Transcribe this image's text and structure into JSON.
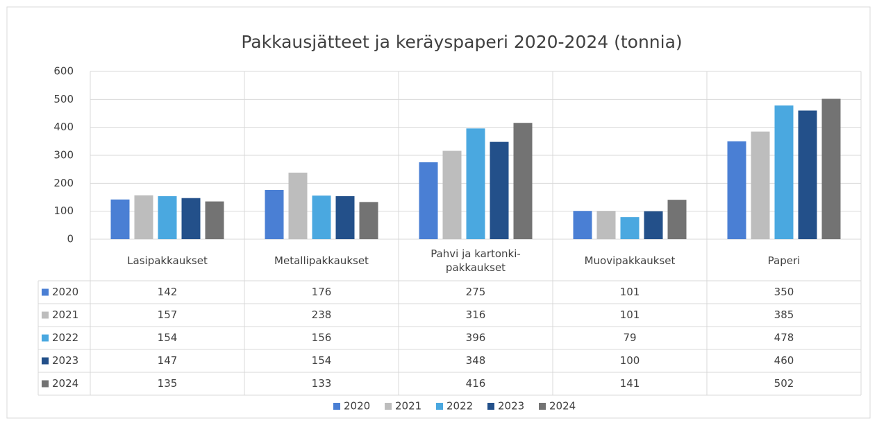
{
  "chart_data": {
    "type": "bar",
    "title": "Pakkausjätteet ja keräyspaperi 2020-2024 (tonnia)",
    "categories": [
      "Lasipakkaukset",
      "Metallipakkaukset",
      "Pahvi ja kartonki-pakkaukset",
      "Muovipakkaukset",
      "Paperi"
    ],
    "series": [
      {
        "name": "2020",
        "color": "#4a7fd4",
        "values": [
          142,
          176,
          275,
          101,
          350
        ]
      },
      {
        "name": "2021",
        "color": "#bdbdbd",
        "values": [
          157,
          238,
          316,
          101,
          385
        ]
      },
      {
        "name": "2022",
        "color": "#4aa8e0",
        "values": [
          154,
          156,
          396,
          79,
          478
        ]
      },
      {
        "name": "2023",
        "color": "#23508a",
        "values": [
          147,
          154,
          348,
          100,
          460
        ]
      },
      {
        "name": "2024",
        "color": "#737373",
        "values": [
          135,
          133,
          416,
          141,
          502
        ]
      }
    ],
    "ylim": [
      0,
      600
    ],
    "yticks": [
      0,
      100,
      200,
      300,
      400,
      500,
      600
    ],
    "grid": true,
    "data_table": true,
    "legend": "bottom"
  }
}
